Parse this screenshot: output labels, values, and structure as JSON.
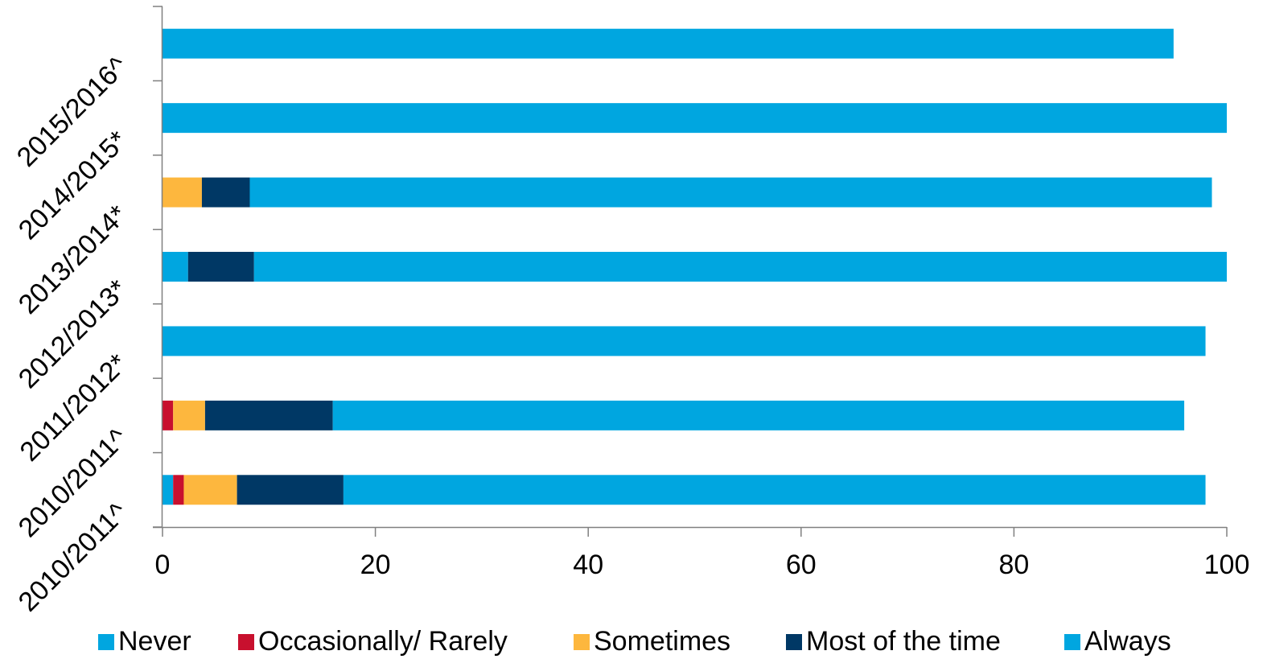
{
  "chart_data": {
    "type": "bar",
    "orientation": "horizontal",
    "stacked": true,
    "categories": [
      "2010/2011^",
      "2010/2011^",
      "2011/2012*",
      "2012/2013*",
      "2013/2014*",
      "2014/2015*",
      "2015/2016^"
    ],
    "series": [
      {
        "name": "Never",
        "color": "#00a6e0",
        "values": [
          1,
          0,
          0,
          2.4,
          0,
          0,
          0
        ]
      },
      {
        "name": "Occasionally/ Rarely",
        "color": "#c8102e",
        "values": [
          1,
          1,
          0,
          0,
          0,
          0,
          0
        ]
      },
      {
        "name": "Sometimes",
        "color": "#fdb73e",
        "values": [
          5,
          3,
          0,
          0,
          3.7,
          0,
          0
        ]
      },
      {
        "name": "Most of the time",
        "color": "#003865",
        "values": [
          10,
          12,
          0,
          6.2,
          4.5,
          0,
          0
        ]
      },
      {
        "name": "Always",
        "color": "#00a6e0",
        "values": [
          81,
          80,
          98,
          91.4,
          90.4,
          100,
          95
        ]
      }
    ],
    "xlim": [
      0,
      100
    ],
    "xticks": [
      "0",
      "20",
      "40",
      "60",
      "80",
      "100"
    ],
    "xlabel": "",
    "ylabel": "",
    "title": "",
    "grid": false,
    "legend_position": "bottom"
  }
}
